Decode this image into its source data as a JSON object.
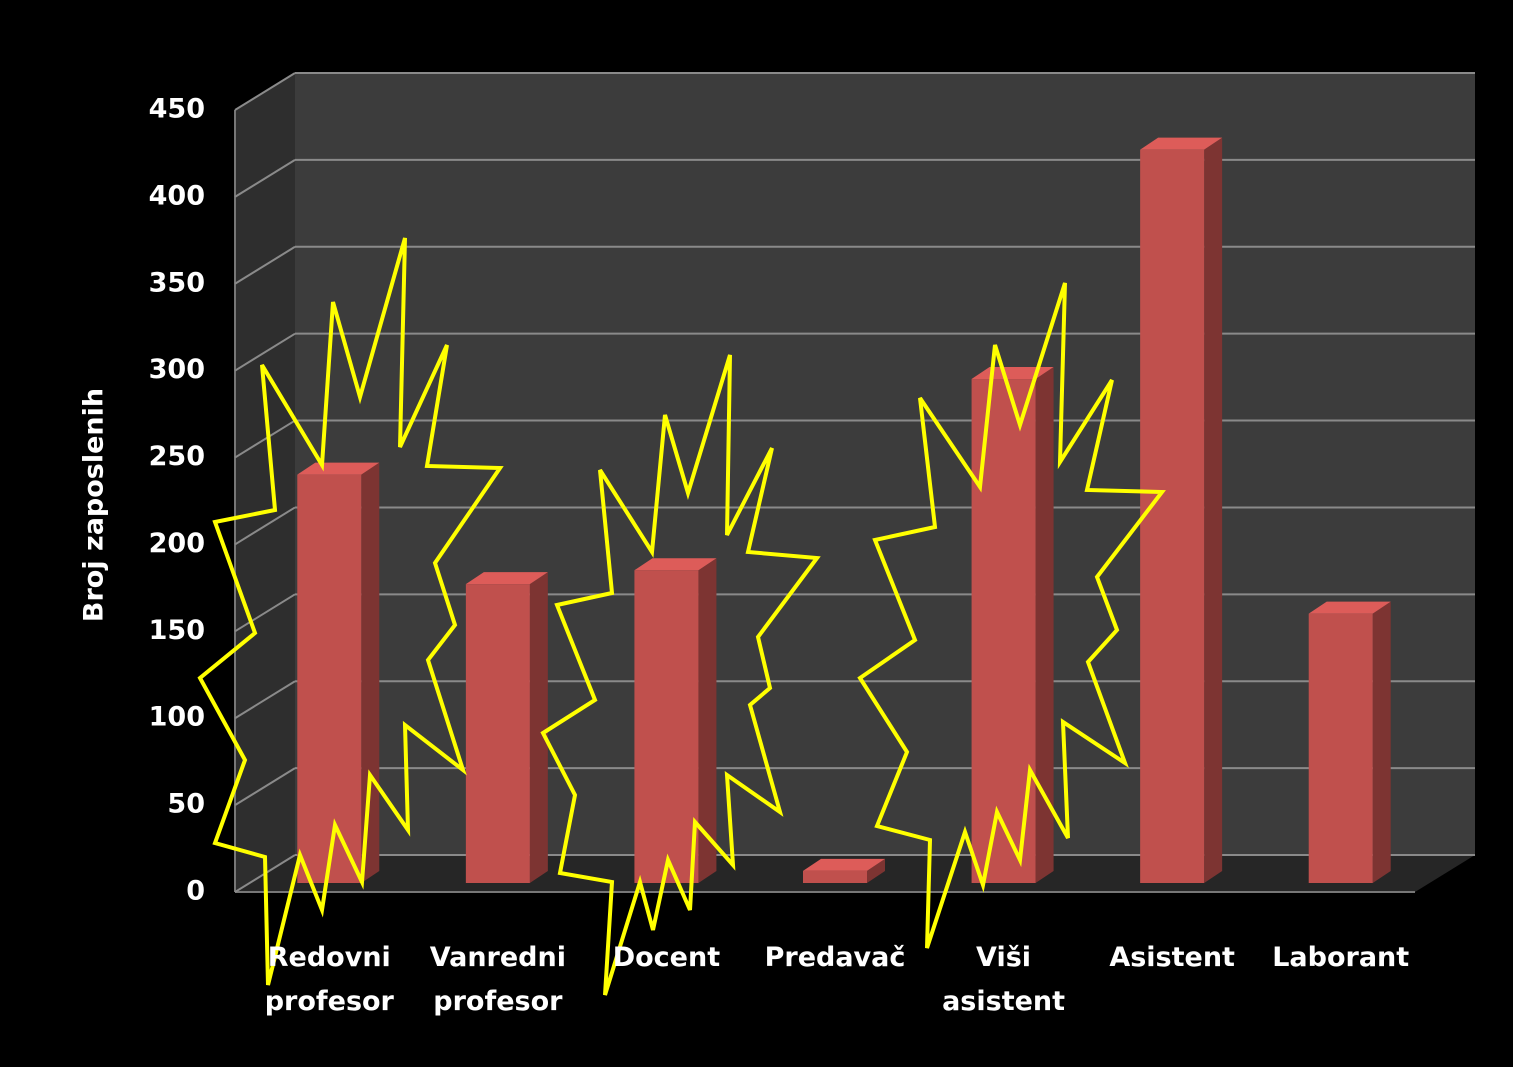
{
  "chart_data": {
    "type": "bar3d",
    "y_label": "Broj zaposlenih",
    "categories": [
      "Redovni profesor",
      "Vanredni profesor",
      "Docent",
      "Predavač",
      "Viši asistent",
      "Asistent",
      "Laborant"
    ],
    "values": [
      235,
      172,
      180,
      7,
      290,
      422,
      155
    ],
    "color": "#c0504d",
    "ylim": [
      0,
      450
    ],
    "yticks": [
      0,
      50,
      100,
      150,
      200,
      250,
      300,
      350,
      400,
      450
    ],
    "grid": true
  }
}
